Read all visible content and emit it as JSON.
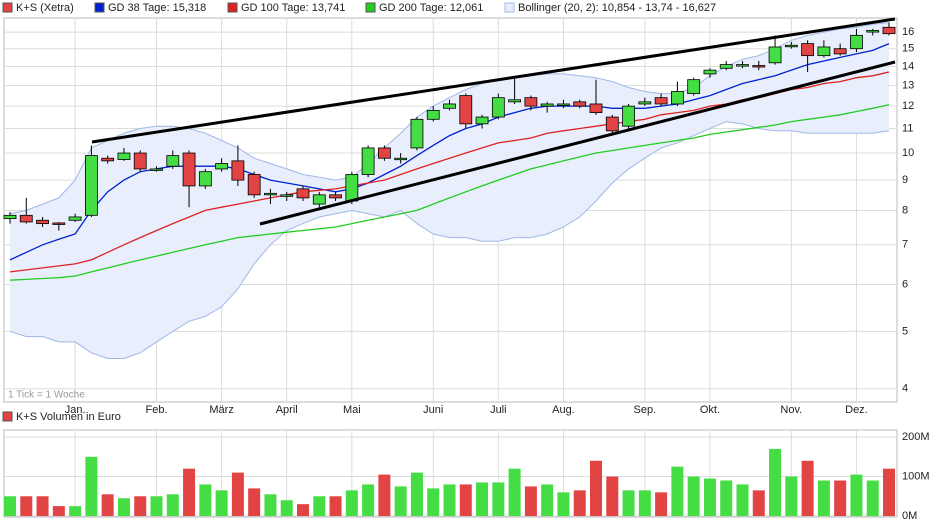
{
  "chart_data": [
    {
      "type": "candlestick",
      "categories": [
        null,
        null,
        null,
        null,
        "Jan.",
        null,
        null,
        null,
        null,
        "Feb.",
        null,
        null,
        null,
        "März",
        null,
        null,
        null,
        "April",
        null,
        null,
        null,
        "Mai",
        null,
        null,
        null,
        null,
        "Juni",
        null,
        null,
        null,
        "Juli",
        null,
        null,
        null,
        "Aug.",
        null,
        null,
        null,
        null,
        "Sep.",
        null,
        null,
        null,
        "Okt.",
        null,
        null,
        null,
        null,
        "Nov.",
        null,
        null,
        null,
        "Dez.",
        null,
        null
      ],
      "series": [
        {
          "name": "K+S (Xetra)",
          "type": "candlestick",
          "color": "#e24444",
          "up_color": "#44dd44",
          "down_color": "#e24444",
          "open": [
            7.75,
            7.85,
            7.7,
            7.62,
            7.7,
            7.85,
            9.8,
            9.75,
            10.0,
            9.4,
            9.5,
            10.0,
            8.8,
            9.4,
            9.7,
            9.2,
            8.5,
            8.5,
            8.7,
            8.2,
            8.5,
            8.3,
            9.2,
            10.2,
            9.8,
            10.2,
            11.4,
            11.9,
            12.5,
            11.2,
            11.5,
            12.2,
            12.4,
            12.0,
            12.1,
            12.2,
            12.1,
            11.5,
            11.1,
            12.1,
            12.4,
            12.1,
            12.6,
            13.6,
            13.9,
            14.1,
            14.05,
            14.2,
            15.2,
            15.3,
            14.6,
            15.0,
            15.0,
            16.0,
            16.3
          ],
          "high": [
            7.95,
            8.4,
            7.8,
            7.65,
            7.9,
            10.3,
            9.9,
            10.2,
            10.1,
            9.5,
            10.1,
            10.1,
            9.4,
            9.8,
            10.3,
            9.3,
            8.7,
            8.6,
            8.8,
            8.6,
            8.6,
            9.3,
            10.3,
            10.3,
            10.0,
            11.5,
            12.0,
            12.3,
            12.6,
            11.6,
            12.6,
            13.4,
            12.5,
            12.2,
            12.3,
            12.3,
            13.3,
            11.6,
            12.1,
            12.4,
            12.6,
            13.2,
            13.4,
            13.9,
            14.3,
            14.3,
            14.3,
            15.8,
            15.4,
            15.5,
            15.5,
            15.3,
            16.2,
            16.2,
            16.6
          ],
          "low": [
            7.6,
            7.6,
            7.5,
            7.4,
            7.65,
            7.8,
            9.6,
            9.7,
            9.3,
            9.3,
            9.4,
            8.1,
            8.7,
            9.3,
            8.8,
            8.4,
            8.2,
            8.3,
            8.3,
            8.1,
            8.3,
            8.2,
            9.1,
            9.7,
            9.6,
            10.1,
            11.3,
            11.8,
            11.0,
            11.0,
            11.4,
            12.1,
            11.8,
            11.7,
            11.9,
            11.9,
            11.6,
            10.7,
            11.0,
            12.0,
            12.0,
            12.0,
            12.5,
            13.4,
            13.8,
            13.9,
            13.8,
            14.1,
            15.0,
            13.7,
            14.5,
            14.6,
            14.8,
            15.8,
            15.8
          ],
          "close": [
            7.85,
            7.65,
            7.6,
            7.6,
            7.8,
            9.9,
            9.7,
            10.0,
            9.4,
            9.4,
            9.9,
            8.8,
            9.3,
            9.6,
            9.0,
            8.5,
            8.55,
            8.5,
            8.4,
            8.5,
            8.4,
            9.2,
            10.2,
            9.8,
            9.8,
            11.4,
            11.8,
            12.1,
            11.2,
            11.5,
            12.4,
            12.3,
            12.0,
            12.1,
            12.1,
            12.0,
            11.7,
            10.9,
            12.0,
            12.2,
            12.1,
            12.7,
            13.3,
            13.8,
            14.1,
            14.1,
            14.0,
            15.1,
            15.2,
            14.6,
            15.1,
            14.7,
            15.8,
            16.1,
            15.9
          ]
        },
        {
          "name": "GD 38 Tage: 15,318",
          "type": "line",
          "color": "#0022cc",
          "values": [
            6.6,
            6.8,
            7.0,
            7.15,
            7.3,
            8.0,
            8.6,
            9.0,
            9.3,
            9.4,
            9.5,
            9.5,
            9.5,
            9.5,
            9.4,
            9.2,
            9.0,
            8.9,
            8.8,
            8.7,
            8.6,
            8.7,
            8.9,
            9.2,
            9.5,
            9.9,
            10.3,
            10.7,
            11.0,
            11.2,
            11.5,
            11.7,
            11.9,
            12.0,
            12.0,
            12.0,
            12.0,
            11.9,
            11.9,
            11.9,
            12.0,
            12.1,
            12.3,
            12.5,
            12.8,
            13.1,
            13.3,
            13.5,
            13.8,
            14.1,
            14.3,
            14.5,
            14.7,
            14.9,
            15.3
          ]
        },
        {
          "name": "GD 100 Tage: 13,741",
          "type": "line",
          "color": "#dd2222",
          "values": [
            6.3,
            6.35,
            6.4,
            6.45,
            6.5,
            6.6,
            6.8,
            7.0,
            7.2,
            7.4,
            7.6,
            7.8,
            8.0,
            8.1,
            8.2,
            8.3,
            8.4,
            8.5,
            8.6,
            8.65,
            8.7,
            8.8,
            8.9,
            9.0,
            9.2,
            9.4,
            9.6,
            9.8,
            10.0,
            10.2,
            10.4,
            10.5,
            10.6,
            10.8,
            10.9,
            11.0,
            11.1,
            11.2,
            11.3,
            11.4,
            11.6,
            11.7,
            11.8,
            12.0,
            12.1,
            12.3,
            12.4,
            12.6,
            12.8,
            12.9,
            13.1,
            13.2,
            13.4,
            13.5,
            13.7
          ]
        },
        {
          "name": "GD 200 Tage: 12,061",
          "type": "line",
          "color": "#22cc22",
          "values": [
            6.1,
            6.12,
            6.14,
            6.16,
            6.2,
            6.3,
            6.4,
            6.5,
            6.6,
            6.7,
            6.8,
            6.9,
            7.0,
            7.1,
            7.2,
            7.25,
            7.3,
            7.35,
            7.4,
            7.45,
            7.5,
            7.6,
            7.7,
            7.8,
            7.9,
            8.0,
            8.2,
            8.4,
            8.6,
            8.8,
            9.0,
            9.2,
            9.4,
            9.55,
            9.7,
            9.85,
            10.0,
            10.1,
            10.2,
            10.3,
            10.4,
            10.5,
            10.6,
            10.75,
            10.85,
            10.95,
            11.05,
            11.15,
            11.3,
            11.4,
            11.5,
            11.6,
            11.75,
            11.9,
            12.06
          ]
        },
        {
          "name": "Bollinger (20, 2): 10,854 - 13,74 - 16,627",
          "type": "band",
          "color": "#9fb8e6",
          "fill": "#e8eefb",
          "upper": [
            7.9,
            8.0,
            8.2,
            8.4,
            9.0,
            10.2,
            10.5,
            10.8,
            11.0,
            11.1,
            11.1,
            11.0,
            10.8,
            10.5,
            10.2,
            9.8,
            9.6,
            9.4,
            9.2,
            9.1,
            9.0,
            9.1,
            9.6,
            10.2,
            10.8,
            11.5,
            12.0,
            12.4,
            12.8,
            13.1,
            13.3,
            13.4,
            13.5,
            13.6,
            13.6,
            13.5,
            13.4,
            13.2,
            12.9,
            12.7,
            12.6,
            12.6,
            12.9,
            13.5,
            14.0,
            14.4,
            14.6,
            15.0,
            15.5,
            15.8,
            16.0,
            16.2,
            16.3,
            16.5,
            16.6
          ],
          "lower": [
            5.0,
            4.9,
            4.9,
            4.8,
            4.8,
            4.6,
            4.5,
            4.5,
            4.6,
            4.8,
            5.0,
            5.2,
            5.3,
            5.5,
            5.9,
            6.5,
            7.0,
            7.4,
            7.6,
            7.8,
            7.9,
            8.0,
            7.9,
            7.8,
            8.0,
            7.6,
            7.3,
            7.2,
            7.2,
            7.1,
            7.1,
            7.2,
            7.2,
            7.3,
            7.5,
            7.8,
            8.3,
            8.9,
            9.4,
            9.8,
            10.2,
            10.4,
            10.7,
            11.0,
            11.3,
            11.2,
            11.0,
            10.9,
            10.9,
            10.8,
            10.8,
            10.8,
            10.8,
            10.8,
            10.9
          ]
        }
      ],
      "ylim": [
        3.8,
        16.9
      ],
      "yticks": [
        4,
        5,
        6,
        7,
        8,
        9,
        10,
        11,
        12,
        13,
        14,
        15,
        16
      ],
      "log_scale": true,
      "grid": true,
      "note": "1 Tick = 1 Woche"
    },
    {
      "type": "bar",
      "series": [
        {
          "name": "K+S Volumen in Euro",
          "color": "#e24444",
          "up_color": "#44dd44",
          "down_color": "#e24444",
          "values": [
            50000000,
            50000000,
            50000000,
            25000000,
            25000000,
            150000000,
            55000000,
            45000000,
            50000000,
            50000000,
            55000000,
            120000000,
            80000000,
            65000000,
            110000000,
            70000000,
            55000000,
            40000000,
            30000000,
            50000000,
            50000000,
            65000000,
            80000000,
            105000000,
            75000000,
            110000000,
            70000000,
            80000000,
            80000000,
            85000000,
            85000000,
            120000000,
            75000000,
            80000000,
            60000000,
            65000000,
            140000000,
            100000000,
            65000000,
            65000000,
            60000000,
            125000000,
            100000000,
            95000000,
            90000000,
            80000000,
            65000000,
            170000000,
            100000000,
            140000000,
            90000000,
            90000000,
            105000000,
            90000000,
            120000000
          ]
        }
      ],
      "ylim": [
        0,
        218000000
      ],
      "yticks": [
        {
          "value": 0,
          "label": "0M"
        },
        {
          "value": 100000000,
          "label": "100M"
        },
        {
          "value": 200000000,
          "label": "200M"
        }
      ],
      "grid": true
    }
  ]
}
